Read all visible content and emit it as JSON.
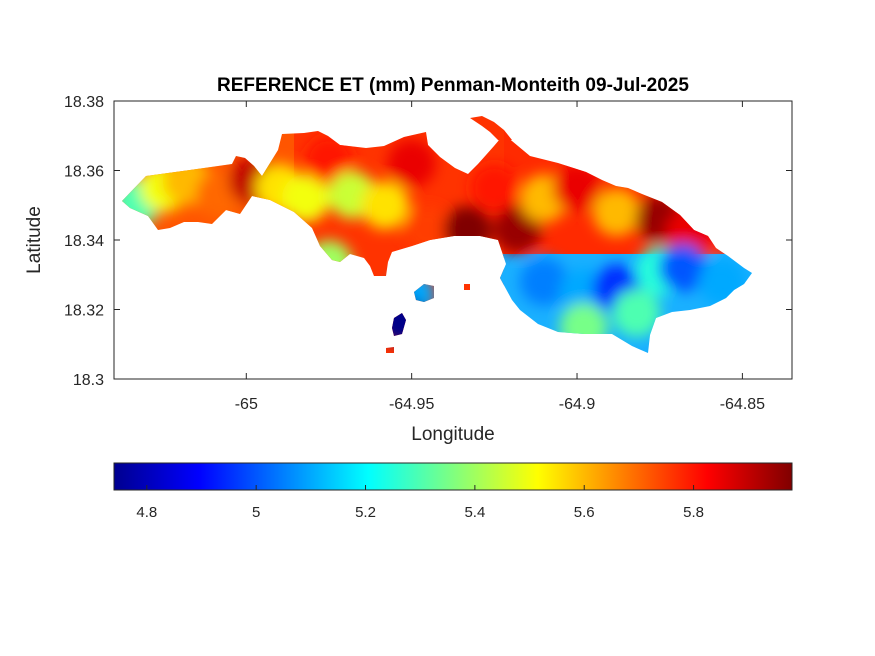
{
  "chart_data": {
    "type": "heatmap",
    "title": "REFERENCE ET (mm) Penman-Monteith 09-Jul-2025",
    "xlabel": "Longitude",
    "ylabel": "Latitude",
    "xlim": [
      -65.04,
      -64.835
    ],
    "ylim": [
      18.3,
      18.38
    ],
    "xticks": [
      -65,
      -64.95,
      -64.9,
      -64.85
    ],
    "xtick_labels": [
      "-65",
      "-64.95",
      "-64.9",
      "-64.85"
    ],
    "yticks": [
      18.3,
      18.32,
      18.34,
      18.36,
      18.38
    ],
    "ytick_labels": [
      "18.3",
      "18.32",
      "18.34",
      "18.36",
      "18.38"
    ],
    "colormap": "jet",
    "clim": [
      4.74,
      5.98
    ],
    "colorbar": {
      "location": "bottom",
      "ticks": [
        4.8,
        5,
        5.2,
        5.4,
        5.6,
        5.8
      ],
      "tick_labels": [
        "4.8",
        "5",
        "5.2",
        "5.4",
        "5.6",
        "5.8"
      ]
    },
    "regions": [
      {
        "lon": -65.033,
        "lat": 18.351,
        "value": 5.3
      },
      {
        "lon": -65.025,
        "lat": 18.355,
        "value": 5.5
      },
      {
        "lon": -65.018,
        "lat": 18.357,
        "value": 5.6
      },
      {
        "lon": -65.008,
        "lat": 18.353,
        "value": 5.7
      },
      {
        "lon": -64.998,
        "lat": 18.357,
        "value": 5.9
      },
      {
        "lon": -64.99,
        "lat": 18.355,
        "value": 5.55
      },
      {
        "lon": -64.982,
        "lat": 18.352,
        "value": 5.5
      },
      {
        "lon": -64.975,
        "lat": 18.363,
        "value": 5.8
      },
      {
        "lon": -64.968,
        "lat": 18.353,
        "value": 5.45
      },
      {
        "lon": -64.958,
        "lat": 18.35,
        "value": 5.55
      },
      {
        "lon": -64.95,
        "lat": 18.362,
        "value": 5.85
      },
      {
        "lon": -64.945,
        "lat": 18.343,
        "value": 5.75
      },
      {
        "lon": -64.933,
        "lat": 18.343,
        "value": 5.98
      },
      {
        "lon": -64.925,
        "lat": 18.355,
        "value": 5.8
      },
      {
        "lon": -64.918,
        "lat": 18.343,
        "value": 5.95
      },
      {
        "lon": -64.91,
        "lat": 18.352,
        "value": 5.6
      },
      {
        "lon": -64.9,
        "lat": 18.355,
        "value": 5.85
      },
      {
        "lon": -64.888,
        "lat": 18.348,
        "value": 5.6
      },
      {
        "lon": -64.875,
        "lat": 18.346,
        "value": 5.95
      },
      {
        "lon": -64.866,
        "lat": 18.342,
        "value": 5.85
      },
      {
        "lon": -64.91,
        "lat": 18.328,
        "value": 5.05
      },
      {
        "lon": -64.898,
        "lat": 18.325,
        "value": 5.1
      },
      {
        "lon": -64.888,
        "lat": 18.326,
        "value": 4.95
      },
      {
        "lon": -64.875,
        "lat": 18.331,
        "value": 5.25
      },
      {
        "lon": -64.868,
        "lat": 18.332,
        "value": 5.0
      },
      {
        "lon": -64.856,
        "lat": 18.328,
        "value": 5.1
      },
      {
        "lon": -64.882,
        "lat": 18.319,
        "value": 5.3
      },
      {
        "lon": -64.898,
        "lat": 18.315,
        "value": 5.35
      },
      {
        "lon": -64.95,
        "lat": 18.324,
        "value": 5.1
      },
      {
        "lon": -64.953,
        "lat": 18.317,
        "value": 4.75
      },
      {
        "lon": -64.975,
        "lat": 18.333,
        "value": 5.4
      }
    ]
  }
}
